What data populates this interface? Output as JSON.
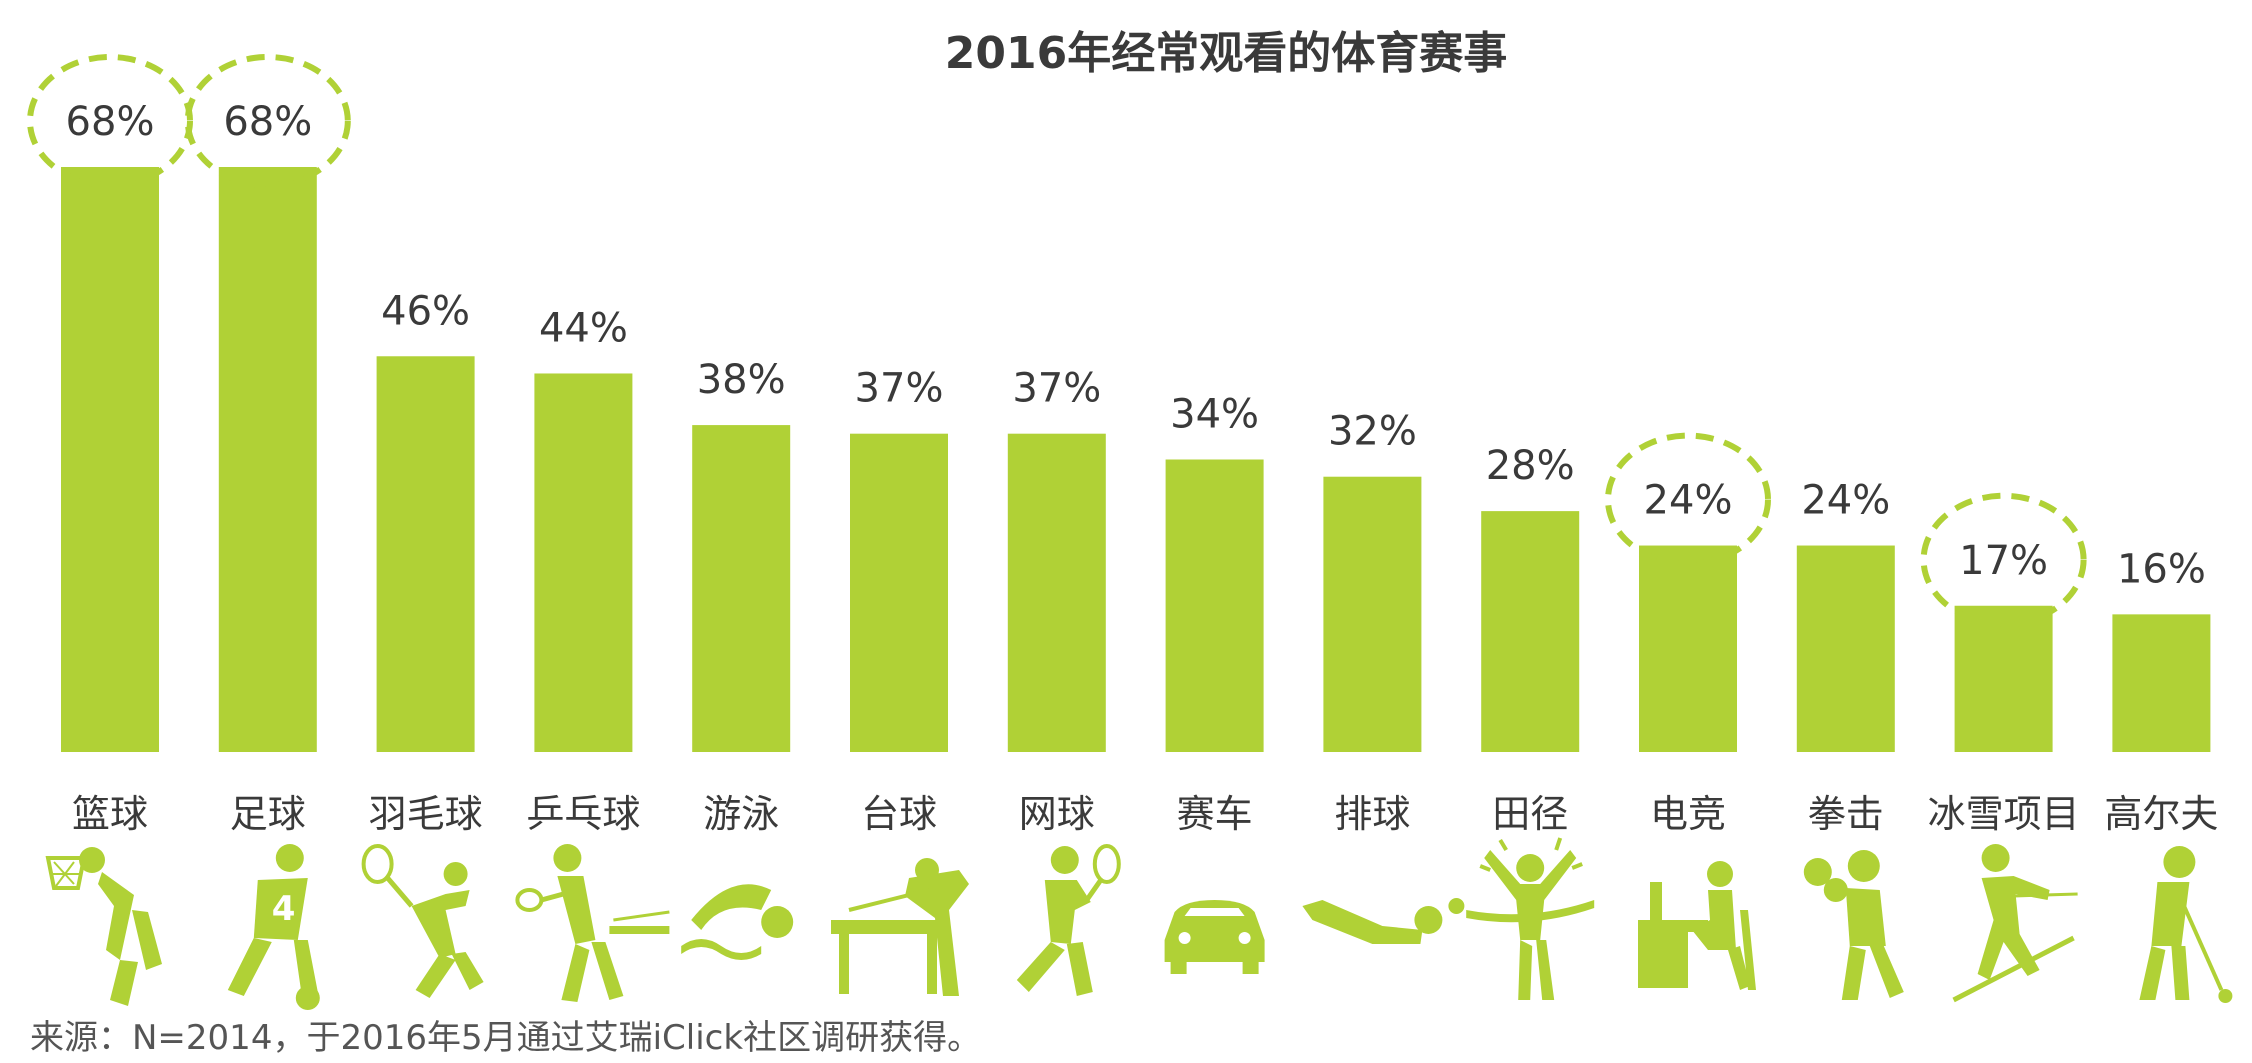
{
  "chart_data": {
    "type": "bar",
    "title": "2016年经常观看的体育赛事",
    "categories": [
      "篮球",
      "足球",
      "羽毛球",
      "乒乓球",
      "游泳",
      "台球",
      "网球",
      "赛车",
      "排球",
      "田径",
      "电竞",
      "拳击",
      "冰雪项目",
      "高尔夫"
    ],
    "values": [
      68,
      68,
      46,
      44,
      38,
      37,
      37,
      34,
      32,
      28,
      24,
      24,
      17,
      16
    ],
    "value_labels": [
      "68%",
      "68%",
      "46%",
      "44%",
      "38%",
      "37%",
      "37%",
      "34%",
      "32%",
      "28%",
      "24%",
      "24%",
      "17%",
      "16%"
    ],
    "highlighted": [
      "篮球",
      "足球",
      "电竞",
      "冰雪项目"
    ],
    "icons": [
      "basketball-player-icon",
      "soccer-player-icon",
      "badminton-player-icon",
      "table-tennis-player-icon",
      "swimmer-icon",
      "billiards-player-icon",
      "tennis-player-icon",
      "race-car-icon",
      "volleyball-player-icon",
      "track-runner-icon",
      "esports-gamer-icon",
      "boxer-icon",
      "skier-icon",
      "golfer-icon"
    ],
    "ylim": [
      0,
      68
    ],
    "grid": false,
    "legend": "none",
    "bar_color": "#b0d136",
    "highlight_color": "#b0d136"
  },
  "footer": {
    "source": "来源：N=2014，于2016年5月通过艾瑞iClick社区调研获得。"
  }
}
